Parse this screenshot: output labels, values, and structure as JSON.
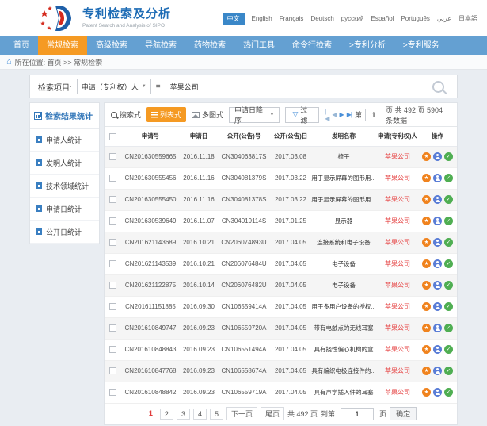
{
  "header": {
    "app_title": "专利检索及分析",
    "app_subtitle": "Patent Search and Analysis of SIPO",
    "languages": [
      {
        "label": "中文",
        "active": true
      },
      {
        "label": "English",
        "active": false
      },
      {
        "label": "Français",
        "active": false
      },
      {
        "label": "Deutsch",
        "active": false
      },
      {
        "label": "русский",
        "active": false
      },
      {
        "label": "Español",
        "active": false
      },
      {
        "label": "Português",
        "active": false
      },
      {
        "label": "عربي",
        "active": false
      },
      {
        "label": "日本語",
        "active": false
      }
    ]
  },
  "nav": {
    "items": [
      {
        "label": "首页",
        "active": false
      },
      {
        "label": "常规检索",
        "active": true
      },
      {
        "label": "高级检索",
        "active": false
      },
      {
        "label": "导航检索",
        "active": false
      },
      {
        "label": "药物检索",
        "active": false
      },
      {
        "label": "热门工具",
        "active": false
      },
      {
        "label": "命令行检索",
        "active": false
      },
      {
        "label": ">专利分析",
        "active": false
      },
      {
        "label": ">专利服务",
        "active": false
      }
    ]
  },
  "breadcrumb": {
    "text": "所在位置: 首页 >> 常规检索"
  },
  "search": {
    "field_label": "检索项目:",
    "field_select": "申请（专利权）人",
    "equals": "=",
    "query": "苹果公司"
  },
  "sidebar": {
    "title": "检索结果统计",
    "items": [
      "申请人统计",
      "发明人统计",
      "技术领域统计",
      "申请日统计",
      "公开日统计"
    ]
  },
  "toolbar": {
    "search_mode": "搜索式",
    "list_mode": "列表式",
    "gallery_mode": "多图式",
    "sort": "申请日降序",
    "filter": "过滤",
    "pager": {
      "first": "|◀",
      "prev": "◀",
      "next": "▶",
      "last": "▶|",
      "prefix": "第",
      "page_value": "1",
      "suffix": "页 共 492 页 5904 条数据"
    }
  },
  "table": {
    "headers": [
      "申请号",
      "申请日",
      "公开(公告)号",
      "公开(公告)日",
      "发明名称",
      "申请(专利权)人",
      "操作"
    ],
    "rows": [
      {
        "app_no": "CN201630559665",
        "app_date": "2016.11.18",
        "pub_no": "CN304063817S",
        "pub_date": "2017.03.08",
        "title": "椅子",
        "applicant": "苹果公司"
      },
      {
        "app_no": "CN201630555456",
        "app_date": "2016.11.16",
        "pub_no": "CN304081379S",
        "pub_date": "2017.03.22",
        "title": "用于显示屏幕的图形用...",
        "applicant": "苹果公司"
      },
      {
        "app_no": "CN201630555450",
        "app_date": "2016.11.16",
        "pub_no": "CN304081378S",
        "pub_date": "2017.03.22",
        "title": "用于显示屏幕的图形用...",
        "applicant": "苹果公司"
      },
      {
        "app_no": "CN201630539649",
        "app_date": "2016.11.07",
        "pub_no": "CN304019114S",
        "pub_date": "2017.01.25",
        "title": "显示器",
        "applicant": "苹果公司"
      },
      {
        "app_no": "CN201621143689",
        "app_date": "2016.10.21",
        "pub_no": "CN206074893U",
        "pub_date": "2017.04.05",
        "title": "连接系统和电子设备",
        "applicant": "苹果公司"
      },
      {
        "app_no": "CN201621143539",
        "app_date": "2016.10.21",
        "pub_no": "CN206076484U",
        "pub_date": "2017.04.05",
        "title": "电子设备",
        "applicant": "苹果公司"
      },
      {
        "app_no": "CN201621122875",
        "app_date": "2016.10.14",
        "pub_no": "CN206076482U",
        "pub_date": "2017.04.05",
        "title": "电子设备",
        "applicant": "苹果公司"
      },
      {
        "app_no": "CN201611151885",
        "app_date": "2016.09.30",
        "pub_no": "CN106559414A",
        "pub_date": "2017.04.05",
        "title": "用于多用户设备的授权...",
        "applicant": "苹果公司"
      },
      {
        "app_no": "CN201610849747",
        "app_date": "2016.09.23",
        "pub_no": "CN106559720A",
        "pub_date": "2017.04.05",
        "title": "带有电触点的无线耳塞",
        "applicant": "苹果公司"
      },
      {
        "app_no": "CN201610848843",
        "app_date": "2016.09.23",
        "pub_no": "CN106551494A",
        "pub_date": "2017.04.05",
        "title": "具有挠性偏心机构的盒",
        "applicant": "苹果公司"
      },
      {
        "app_no": "CN201610847768",
        "app_date": "2016.09.23",
        "pub_no": "CN106558674A",
        "pub_date": "2017.04.05",
        "title": "具有编织电极连接件的...",
        "applicant": "苹果公司"
      },
      {
        "app_no": "CN201610848842",
        "app_date": "2016.09.23",
        "pub_no": "CN106559719A",
        "pub_date": "2017.04.05",
        "title": "具有声学插入件的耳塞",
        "applicant": "苹果公司"
      }
    ]
  },
  "pagination": {
    "pages": [
      "1",
      "2",
      "3",
      "4",
      "5"
    ],
    "current": "1",
    "next_label": "下一页",
    "last_label": "尾页",
    "total_label": "共 492 页",
    "goto_prefix": "到第",
    "goto_value": "1",
    "goto_suffix": "页",
    "confirm_label": "确定"
  },
  "colors": {
    "nav_blue": "#64a0d2",
    "accent_orange": "#f59a23",
    "title_blue": "#1e6cb5",
    "applicant_red": "#e64444",
    "action_orange": "#f0831e",
    "action_blue": "#5a7dd6",
    "action_green": "#4fae52"
  }
}
